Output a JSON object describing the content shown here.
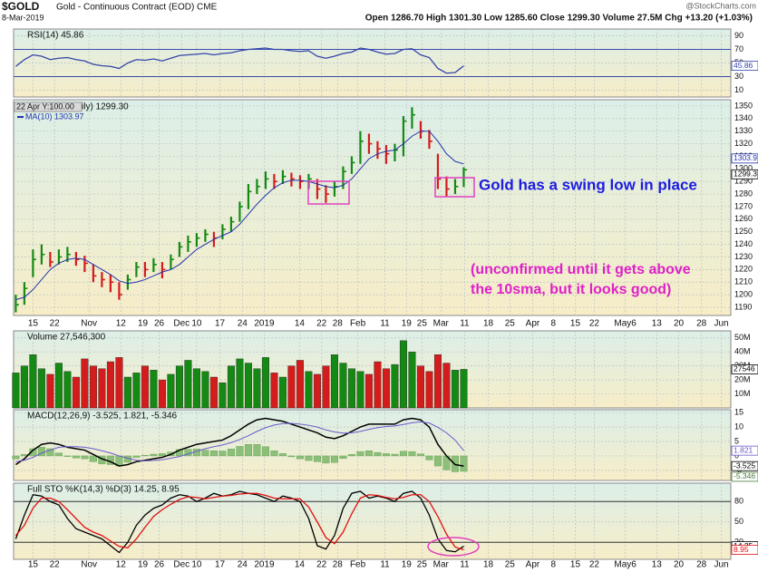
{
  "header": {
    "title": "$GOLD",
    "subtitle": "Gold - Continuous Contract (EOD) CME",
    "date": "8-Mar-2019",
    "quote": "Open 1286.70 High 1301.30 Low 1285.60 Close 1299.30 Volume 27.5M Chg +13.20 (+1.03%)",
    "source": "@StockCharts.com"
  },
  "chart_data": {
    "type": "stock",
    "x": [
      0,
      2,
      4,
      6,
      8,
      10,
      12,
      14,
      16,
      18,
      20,
      22,
      24,
      26,
      28,
      30,
      32,
      34,
      36,
      38,
      40,
      42,
      44,
      46,
      48,
      50,
      52,
      54,
      56,
      58,
      60,
      62,
      64,
      66,
      68,
      70,
      72,
      74,
      76,
      78,
      80,
      82,
      84,
      86,
      88,
      90,
      92,
      94,
      96,
      98,
      100,
      102,
      104
    ],
    "xlim": [
      -0.5,
      166
    ],
    "xticks": [
      {
        "value": 4,
        "label": "15"
      },
      {
        "value": 9,
        "label": "22"
      },
      {
        "value": 17,
        "label": "Nov"
      },
      {
        "value": 24.4,
        "label": "12"
      },
      {
        "value": 29.5,
        "label": "19"
      },
      {
        "value": 33.3,
        "label": "26"
      },
      {
        "value": 38.5,
        "label": "Dec"
      },
      {
        "value": 42,
        "label": "10"
      },
      {
        "value": 47.4,
        "label": "17"
      },
      {
        "value": 52.6,
        "label": "24"
      },
      {
        "value": 57.7,
        "label": "2019"
      },
      {
        "value": 65.9,
        "label": "14"
      },
      {
        "value": 71,
        "label": "22"
      },
      {
        "value": 74.7,
        "label": "28"
      },
      {
        "value": 79.4,
        "label": "Feb"
      },
      {
        "value": 85.7,
        "label": "11"
      },
      {
        "value": 90.7,
        "label": "19"
      },
      {
        "value": 94.3,
        "label": "25"
      },
      {
        "value": 98.7,
        "label": "Mar"
      },
      {
        "value": 104.2,
        "label": "11"
      },
      {
        "value": 109.7,
        "label": "18"
      },
      {
        "value": 114.7,
        "label": "25"
      },
      {
        "value": 120,
        "label": "Apr"
      },
      {
        "value": 124.8,
        "label": "8"
      },
      {
        "value": 129.9,
        "label": "15"
      },
      {
        "value": 134.3,
        "label": "22"
      },
      {
        "value": 141.5,
        "label": "May6"
      },
      {
        "value": 148.8,
        "label": "13"
      },
      {
        "value": 153.9,
        "label": "20"
      },
      {
        "value": 159.2,
        "label": "28"
      },
      {
        "value": 163.8,
        "label": "Jun"
      }
    ],
    "grid": true,
    "panels": [
      {
        "type": "line",
        "label": "RSI(14) 45.86",
        "ylim": [
          0,
          100
        ],
        "yticks": [
          90,
          70,
          50,
          30,
          10
        ],
        "levels": [
          70,
          30
        ],
        "level_color": "#3a4db0",
        "series": [
          {
            "color": "#3344aa",
            "values": [
              45,
              55,
              62,
              60,
              55,
              57,
              58,
              55,
              53,
              48,
              46,
              45,
              42,
              50,
              55,
              54,
              56,
              53,
              57,
              61,
              62,
              63,
              64,
              62,
              64,
              65,
              68,
              70,
              71,
              72,
              70,
              70,
              68,
              67,
              68,
              60,
              57,
              60,
              64,
              66,
              72,
              70,
              66,
              63,
              64,
              70,
              71,
              62,
              58,
              42,
              35,
              36,
              45.86
            ]
          }
        ]
      },
      {
        "type": "ohlc",
        "cursor_label": "22 Apr Y:100.00",
        "label": "ily) 1299.30",
        "ylim": [
          1183.5,
          1355
        ],
        "yticks": [
          1350,
          1340,
          1330,
          1320,
          1310,
          1300,
          1290,
          1280,
          1270,
          1260,
          1250,
          1240,
          1230,
          1220,
          1210,
          1200,
          1190
        ],
        "up_color": "#148a14",
        "down_color": "#d41c1c",
        "high": [
          1200,
          1210,
          1236,
          1240,
          1234,
          1236,
          1238,
          1234,
          1231,
          1224,
          1218,
          1216,
          1210,
          1216,
          1226,
          1226,
          1229,
          1226,
          1232,
          1242,
          1247,
          1249,
          1252,
          1250,
          1256,
          1262,
          1274,
          1288,
          1292,
          1298,
          1296,
          1299,
          1297,
          1295,
          1296,
          1292,
          1287,
          1290,
          1302,
          1310,
          1330,
          1328,
          1322,
          1319,
          1320,
          1342,
          1349,
          1338,
          1331,
          1312,
          1294,
          1292,
          1301.3
        ],
        "low": [
          1186,
          1192,
          1214,
          1224,
          1222,
          1224,
          1226,
          1223,
          1218,
          1210,
          1206,
          1202,
          1196,
          1204,
          1214,
          1214,
          1218,
          1213,
          1220,
          1230,
          1234,
          1238,
          1242,
          1238,
          1244,
          1250,
          1258,
          1268,
          1280,
          1284,
          1284,
          1288,
          1286,
          1284,
          1284,
          1276,
          1273,
          1278,
          1284,
          1296,
          1304,
          1312,
          1308,
          1304,
          1306,
          1310,
          1332,
          1324,
          1316,
          1284,
          1278,
          1280,
          1285.6
        ],
        "close": [
          1192,
          1205,
          1228,
          1232,
          1226,
          1230,
          1232,
          1228,
          1225,
          1215,
          1212,
          1210,
          1200,
          1212,
          1222,
          1220,
          1224,
          1220,
          1228,
          1238,
          1242,
          1245,
          1248,
          1245,
          1252,
          1258,
          1270,
          1282,
          1286,
          1292,
          1290,
          1294,
          1292,
          1290,
          1292,
          1284,
          1280,
          1286,
          1298,
          1305,
          1322,
          1320,
          1316,
          1312,
          1315,
          1338,
          1343,
          1330,
          1322,
          1292,
          1284,
          1286,
          1299.3
        ],
        "series": [
          {
            "name": "MA(10) 1303.97",
            "color": "#2233aa",
            "values": [
              1196,
              1198,
              1204,
              1212,
              1220,
              1225,
              1228,
              1229,
              1228,
              1224,
              1220,
              1216,
              1211,
              1209,
              1210,
              1212,
              1215,
              1218,
              1220,
              1224,
              1230,
              1236,
              1240,
              1244,
              1247,
              1250,
              1256,
              1264,
              1272,
              1279,
              1285,
              1289,
              1291,
              1291,
              1290,
              1288,
              1286,
              1285,
              1287,
              1292,
              1300,
              1308,
              1312,
              1314,
              1315,
              1320,
              1326,
              1330,
              1330,
              1322,
              1312,
              1306,
              1303.97
            ]
          }
        ],
        "annotations": [
          "Gold has a swing low in place",
          "(unconfirmed until it gets above",
          "the 10sma, but it looks good)"
        ]
      },
      {
        "type": "bar",
        "label": "Volume 27,546,300",
        "ylim": [
          0,
          55000000
        ],
        "yticks": [
          {
            "value": 50000000,
            "label": "50M"
          },
          {
            "value": 40000000,
            "label": "40M"
          },
          {
            "value": 30000000,
            "label": "30M"
          },
          {
            "value": 20000000,
            "label": "20M"
          },
          {
            "value": 10000000,
            "label": "10M"
          }
        ],
        "values": [
          25000000,
          30000000,
          38000000,
          28000000,
          24000000,
          32000000,
          26000000,
          22000000,
          35000000,
          30000000,
          28000000,
          33000000,
          36000000,
          22000000,
          25000000,
          30000000,
          27000000,
          20000000,
          24000000,
          30000000,
          34000000,
          28000000,
          26000000,
          22000000,
          18000000,
          30000000,
          35000000,
          32000000,
          28000000,
          36000000,
          25000000,
          22000000,
          30000000,
          34000000,
          26000000,
          24000000,
          30000000,
          38000000,
          32000000,
          28000000,
          26000000,
          24000000,
          33000000,
          28000000,
          31000000,
          48000000,
          40000000,
          30000000,
          26000000,
          38000000,
          32000000,
          27000000,
          27546300
        ],
        "last_label": "27546"
      },
      {
        "type": "macd",
        "label": "MACD(12,26,9) -3.525, 1.821, -5.346",
        "ylim": [
          -8.5,
          16
        ],
        "yticks": [
          15,
          10,
          5,
          0,
          -5
        ],
        "series": [
          {
            "color": "#000000",
            "values": [
              -3,
              -1,
              2,
              4,
              4.5,
              4,
              3,
              2.5,
              2,
              0.5,
              -1,
              -2,
              -3.5,
              -3,
              -2,
              -1.5,
              -1,
              -0.5,
              0.5,
              2,
              3,
              4,
              4.5,
              5,
              5.5,
              7,
              9,
              11,
              12.5,
              13,
              12.5,
              12,
              11,
              10,
              9,
              8,
              6.5,
              6,
              7,
              8.5,
              10,
              11,
              11,
              11,
              11,
              12.5,
              13,
              12.5,
              10,
              4,
              0,
              -3,
              -3.525
            ]
          },
          {
            "color": "#6a5acd",
            "values": [
              -2,
              -1.5,
              -0.5,
              1,
              2,
              3,
              3.2,
              3.2,
              3,
              2.5,
              1.8,
              1,
              0,
              -0.8,
              -1.5,
              -1.7,
              -1.6,
              -1.3,
              -0.8,
              -0.2,
              0.7,
              1.6,
              2.5,
              3.2,
              3.8,
              4.6,
              5.7,
              7,
              8.5,
              9.8,
              10.7,
              11.2,
              11.3,
              11,
              10.6,
              10,
              9,
              8.3,
              7.9,
              8,
              8.5,
              9.2,
              9.8,
              10.2,
              10.4,
              10.9,
              11.5,
              11.8,
              11.4,
              9.9,
              8,
              5.5,
              1.821
            ]
          },
          {
            "color": "#8cc07a",
            "style": "bar",
            "values": [
              -1,
              0.5,
              2.5,
              3,
              2.5,
              1,
              -0.2,
              -0.7,
              -1,
              -2,
              -2.8,
              -3,
              -3.5,
              -2.2,
              -0.5,
              0.2,
              0.6,
              0.8,
              1.3,
              2.2,
              2.3,
              2.4,
              2,
              1.8,
              1.7,
              2.4,
              3.3,
              4,
              4,
              3.2,
              1.8,
              0.8,
              -0.3,
              -1,
              -1.6,
              -2,
              -2.5,
              -2.3,
              -0.9,
              0.5,
              1.5,
              1.8,
              1.2,
              0.8,
              0.6,
              1.6,
              1.5,
              0.7,
              -1.4,
              -3.5,
              -4.8,
              -5.5,
              -5.346
            ]
          }
        ]
      },
      {
        "type": "line",
        "label": "Full STO %K(14,3) %D(3) 14.25, 8.95",
        "ylim": [
          -5,
          107
        ],
        "yticks": [
          80,
          50,
          20
        ],
        "levels": [
          80,
          20
        ],
        "level_color": "#333333",
        "series": [
          {
            "color": "#000000",
            "values": [
              25,
              60,
              90,
              88,
              80,
              75,
              55,
              40,
              35,
              30,
              25,
              15,
              5,
              20,
              45,
              60,
              70,
              75,
              85,
              90,
              88,
              80,
              85,
              92,
              88,
              90,
              95,
              92,
              90,
              85,
              80,
              88,
              85,
              80,
              55,
              15,
              10,
              30,
              70,
              92,
              95,
              85,
              88,
              85,
              80,
              92,
              95,
              85,
              60,
              25,
              8,
              6,
              14.25
            ]
          },
          {
            "color": "#e01010",
            "values": [
              30,
              45,
              70,
              85,
              85,
              80,
              68,
              55,
              42,
              35,
              30,
              22,
              14,
              12,
              25,
              42,
              58,
              68,
              76,
              83,
              87,
              86,
              84,
              86,
              88,
              89,
              91,
              92,
              92,
              89,
              85,
              84,
              84,
              84,
              72,
              50,
              27,
              18,
              35,
              62,
              85,
              90,
              89,
              86,
              84,
              86,
              90,
              90,
              80,
              58,
              32,
              13,
              8.95
            ]
          }
        ]
      }
    ]
  }
}
